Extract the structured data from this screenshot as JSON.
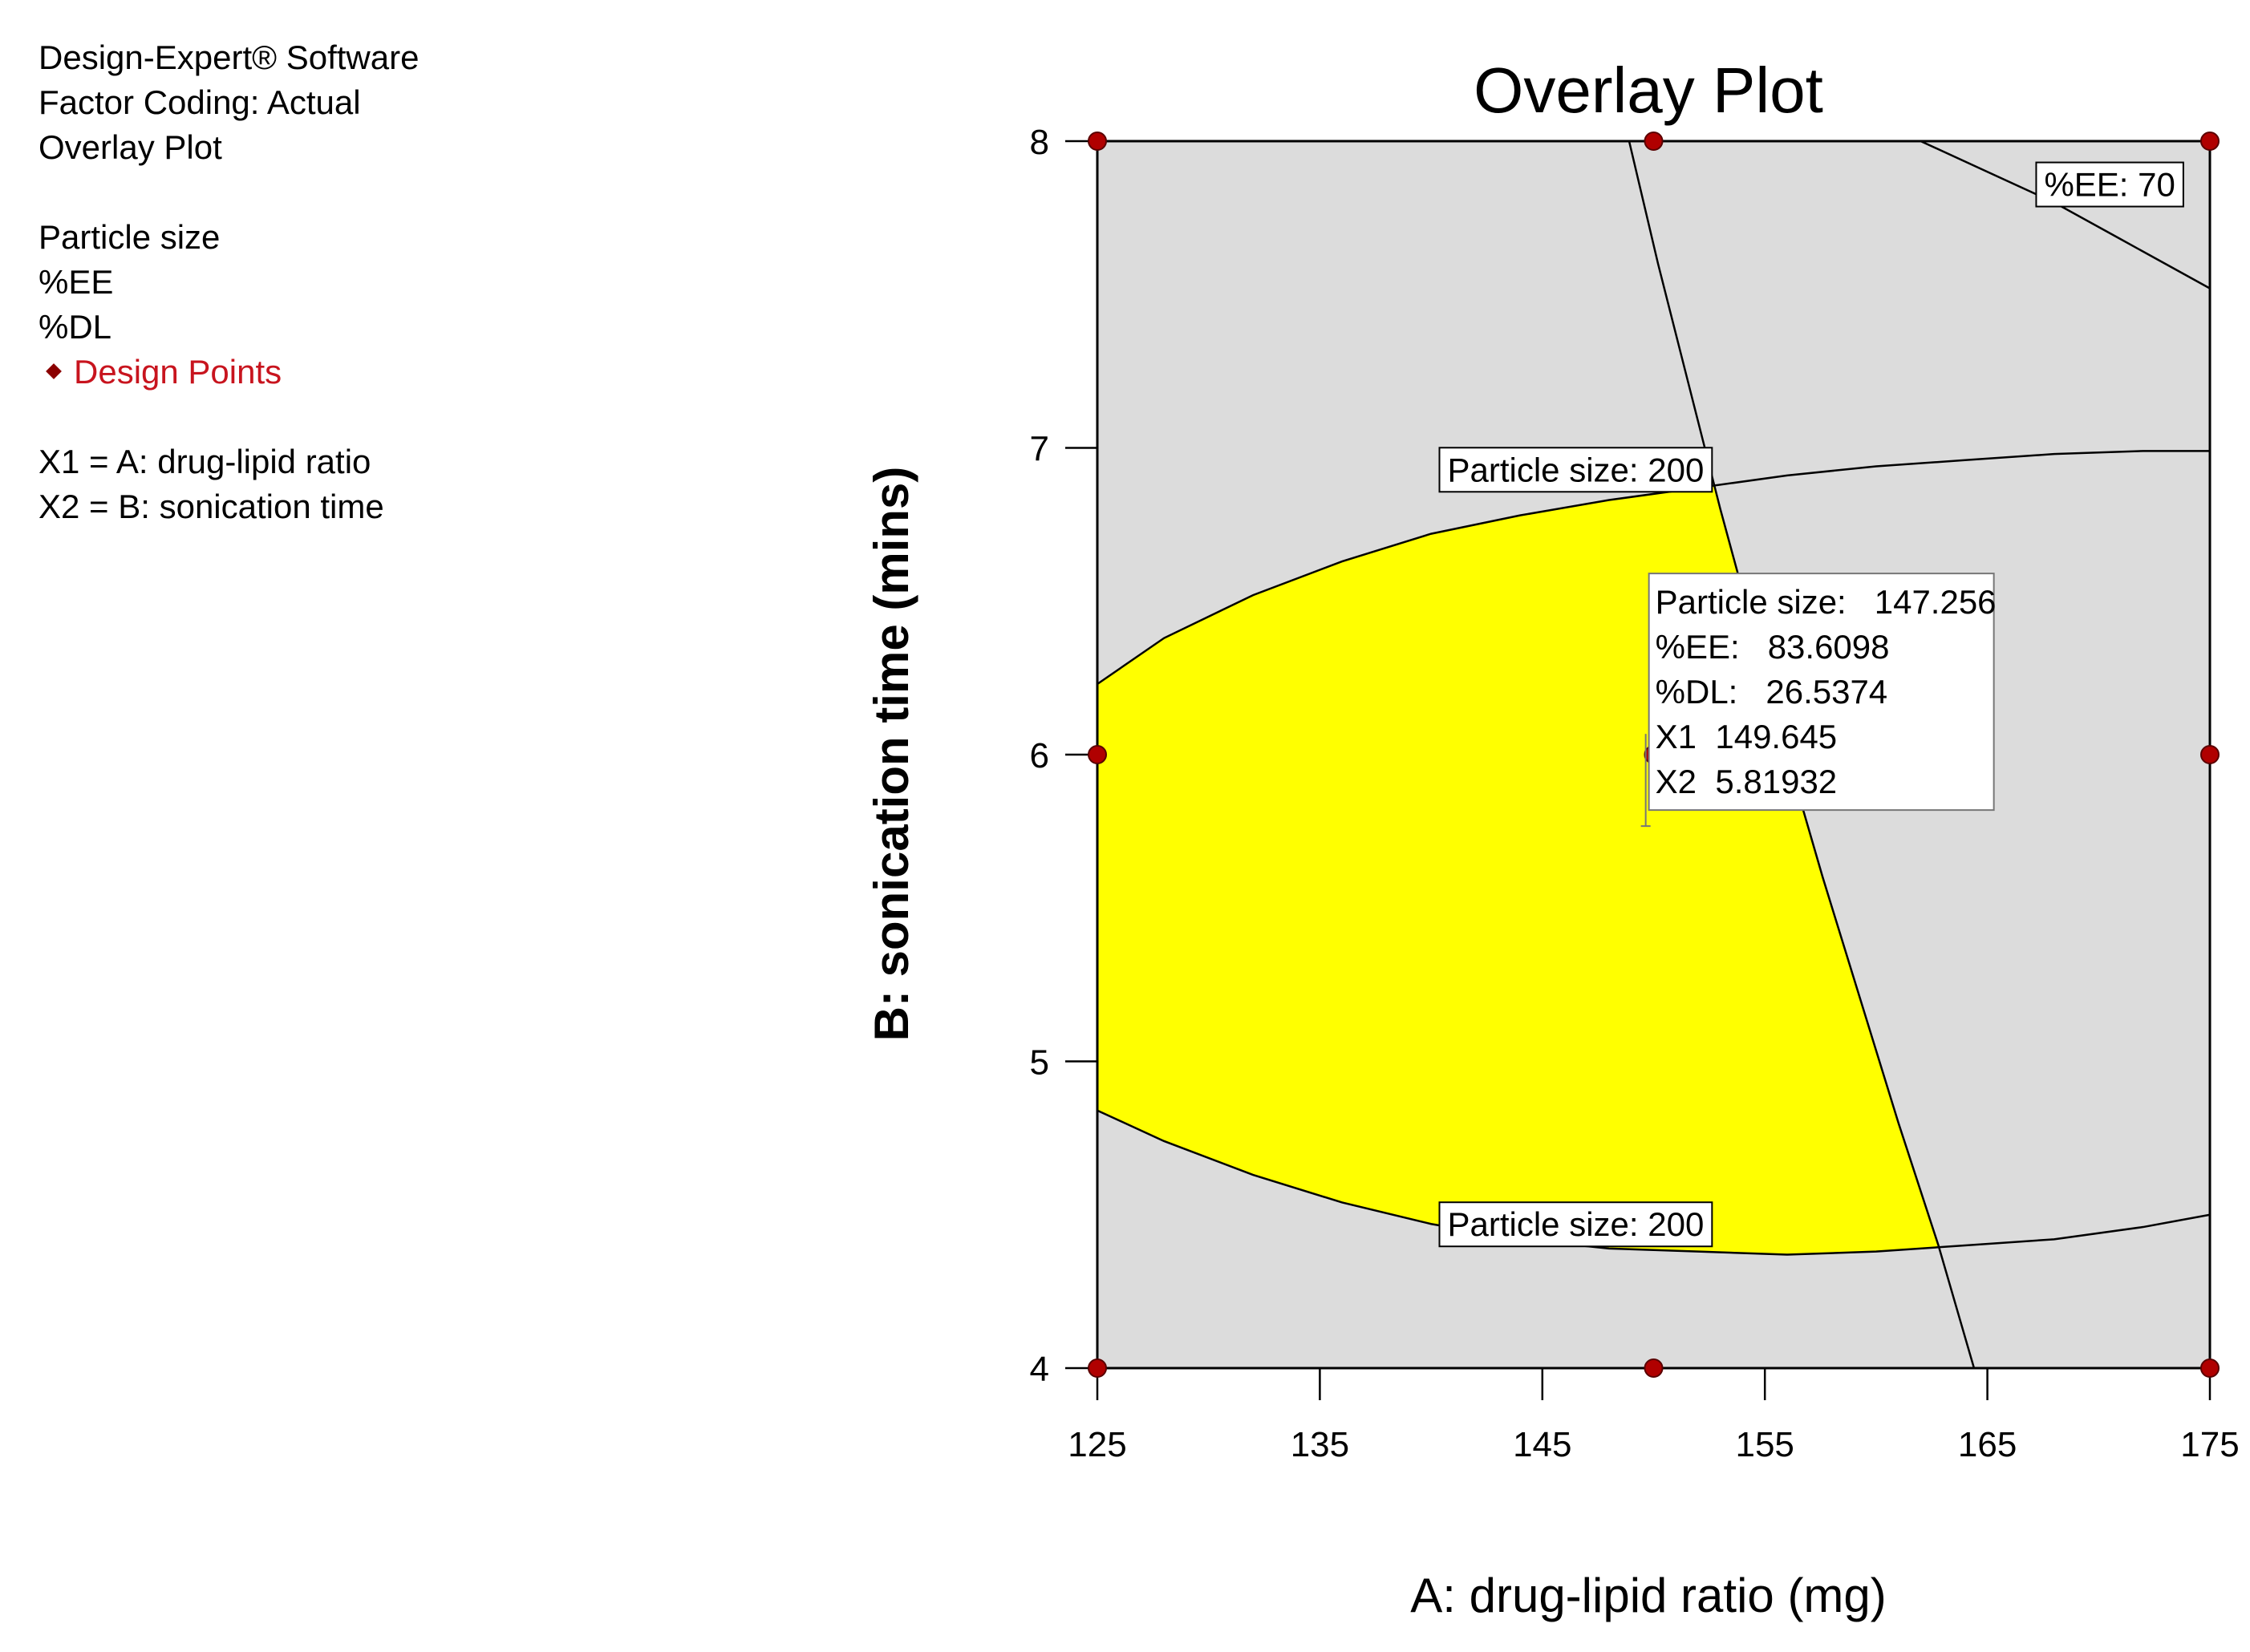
{
  "info_panel": {
    "lines_top": [
      "Design-Expert® Software",
      "Factor Coding: Actual",
      "Overlay Plot"
    ],
    "responses": [
      "Particle size",
      "%EE",
      "%DL"
    ],
    "design_points_label": "Design Points",
    "factors": [
      "X1 = A: drug-lipid ratio",
      "X2 = B: sonication time"
    ]
  },
  "colors": {
    "plot_background": "#dcdcdc",
    "feasible_region": "#ffff00",
    "design_point": "#b00000",
    "design_points_text": "#c8141e"
  },
  "chart_data": {
    "type": "contour-overlay",
    "title": "Overlay Plot",
    "xlabel": "A: drug-lipid ratio (mg)",
    "ylabel": "B: sonication time (mins)",
    "xlim": [
      125,
      175
    ],
    "ylim": [
      4,
      8
    ],
    "x_ticks": [
      125,
      135,
      145,
      155,
      165,
      175
    ],
    "y_ticks": [
      4,
      5,
      6,
      7,
      8
    ],
    "design_points": [
      {
        "x": 125,
        "y": 8
      },
      {
        "x": 150,
        "y": 8
      },
      {
        "x": 175,
        "y": 8
      },
      {
        "x": 125,
        "y": 6
      },
      {
        "x": 150,
        "y": 6
      },
      {
        "x": 175,
        "y": 6
      },
      {
        "x": 125,
        "y": 4
      },
      {
        "x": 150,
        "y": 4
      },
      {
        "x": 175,
        "y": 4
      }
    ],
    "contours": [
      {
        "name": "particle-size-upper",
        "points": [
          [
            125,
            6.23
          ],
          [
            128,
            6.38
          ],
          [
            132,
            6.52
          ],
          [
            136,
            6.63
          ],
          [
            140,
            6.72
          ],
          [
            144,
            6.78
          ],
          [
            148,
            6.83
          ],
          [
            152,
            6.87
          ],
          [
            156,
            6.91
          ],
          [
            160,
            6.94
          ],
          [
            164,
            6.96
          ],
          [
            168,
            6.98
          ],
          [
            172,
            6.99
          ],
          [
            175,
            6.99
          ]
        ]
      },
      {
        "name": "particle-size-lower",
        "points": [
          [
            125,
            4.84
          ],
          [
            128,
            4.74
          ],
          [
            132,
            4.63
          ],
          [
            136,
            4.54
          ],
          [
            140,
            4.47
          ],
          [
            144,
            4.42
          ],
          [
            148,
            4.39
          ],
          [
            152,
            4.38
          ],
          [
            156,
            4.37
          ],
          [
            160,
            4.38
          ],
          [
            164,
            4.4
          ],
          [
            168,
            4.42
          ],
          [
            172,
            4.46
          ],
          [
            175,
            4.5
          ]
        ]
      },
      {
        "name": "dl-boundary",
        "points": [
          [
            148.9,
            8
          ],
          [
            150.2,
            7.6
          ],
          [
            151.6,
            7.2
          ],
          [
            153.0,
            6.8
          ],
          [
            154.5,
            6.4
          ],
          [
            156.0,
            6.0
          ],
          [
            157.6,
            5.6
          ],
          [
            159.3,
            5.2
          ],
          [
            161.0,
            4.8
          ],
          [
            162.8,
            4.4
          ],
          [
            164.4,
            4.0
          ]
        ]
      },
      {
        "name": "ee-70",
        "points": [
          [
            162,
            8
          ],
          [
            165,
            7.9
          ],
          [
            168,
            7.8
          ],
          [
            171,
            7.68
          ],
          [
            173,
            7.6
          ],
          [
            175,
            7.52
          ]
        ]
      }
    ],
    "contour_labels": [
      {
        "text": "Particle size: 200",
        "x": 146.5,
        "y": 6.93
      },
      {
        "text": "Particle size: 200",
        "x": 146.5,
        "y": 4.47
      },
      {
        "text": "%EE: 70",
        "x": 170.5,
        "y": 7.86
      }
    ],
    "flag": {
      "x": 149.645,
      "y": 5.81932,
      "lines": [
        "Particle size:   147.256",
        "%EE:   83.6098",
        "%DL:   26.5374",
        "X1  149.645",
        "X2  5.81932"
      ]
    }
  }
}
